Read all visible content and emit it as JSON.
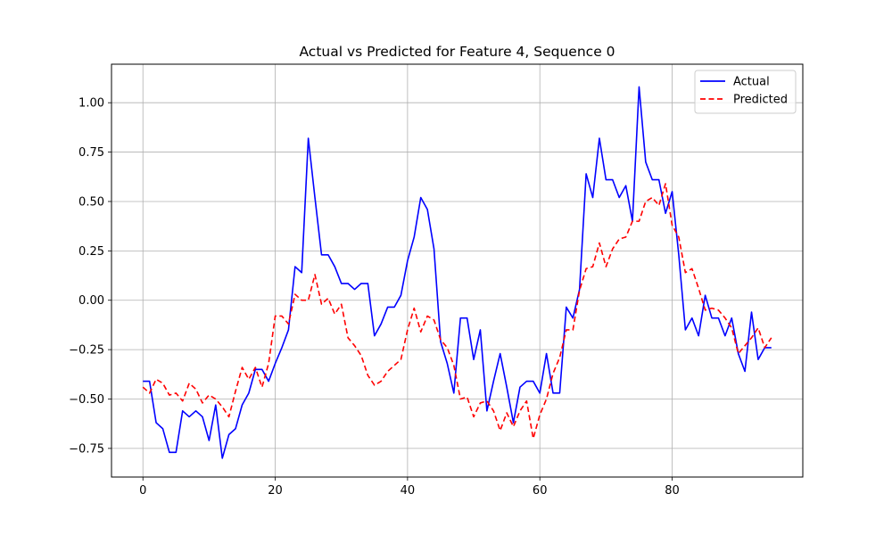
{
  "chart_data": {
    "type": "line",
    "title": "Actual vs Predicted for Feature 4, Sequence 0",
    "xlabel": "",
    "ylabel": "",
    "xlim": [
      -4.75,
      99.75
    ],
    "ylim": [
      -0.895,
      1.195
    ],
    "xticks": [
      0,
      20,
      40,
      60,
      80
    ],
    "yticks": [
      -0.75,
      -0.5,
      -0.25,
      0.0,
      0.25,
      0.5,
      0.75,
      1.0
    ],
    "ytick_labels": [
      "−0.75",
      "−0.50",
      "−0.25",
      "0.00",
      "0.25",
      "0.50",
      "0.75",
      "1.00"
    ],
    "grid": true,
    "legend_position": "top-right",
    "series": [
      {
        "name": "Actual",
        "color": "#0000ff",
        "style": "solid",
        "values": [
          -0.41,
          -0.41,
          -0.62,
          -0.65,
          -0.77,
          -0.77,
          -0.56,
          -0.59,
          -0.56,
          -0.59,
          -0.71,
          -0.53,
          -0.8,
          -0.68,
          -0.65,
          -0.53,
          -0.47,
          -0.35,
          -0.35,
          -0.41,
          -0.32,
          -0.24,
          -0.15,
          0.17,
          0.14,
          0.82,
          0.52,
          0.23,
          0.23,
          0.17,
          0.085,
          0.085,
          0.055,
          0.085,
          0.085,
          -0.18,
          -0.12,
          -0.035,
          -0.035,
          0.025,
          0.2,
          0.32,
          0.52,
          0.46,
          0.26,
          -0.21,
          -0.32,
          -0.47,
          -0.09,
          -0.09,
          -0.3,
          -0.15,
          -0.56,
          -0.41,
          -0.27,
          -0.44,
          -0.62,
          -0.44,
          -0.41,
          -0.41,
          -0.47,
          -0.27,
          -0.47,
          -0.47,
          -0.035,
          -0.09,
          0.055,
          0.64,
          0.52,
          0.82,
          0.61,
          0.61,
          0.52,
          0.58,
          0.4,
          1.08,
          0.7,
          0.61,
          0.61,
          0.44,
          0.55,
          0.23,
          -0.15,
          -0.09,
          -0.18,
          0.025,
          -0.09,
          -0.09,
          -0.18,
          -0.09,
          -0.27,
          -0.36,
          -0.06,
          -0.3,
          -0.24,
          -0.24
        ]
      },
      {
        "name": "Predicted",
        "color": "#ff0000",
        "style": "dashed",
        "values": [
          -0.44,
          -0.47,
          -0.4,
          -0.42,
          -0.48,
          -0.47,
          -0.51,
          -0.42,
          -0.45,
          -0.52,
          -0.48,
          -0.5,
          -0.54,
          -0.59,
          -0.46,
          -0.34,
          -0.4,
          -0.34,
          -0.44,
          -0.32,
          -0.08,
          -0.08,
          -0.12,
          0.03,
          0.0,
          0.0,
          0.13,
          -0.02,
          0.01,
          -0.07,
          -0.02,
          -0.19,
          -0.23,
          -0.28,
          -0.38,
          -0.43,
          -0.41,
          -0.36,
          -0.33,
          -0.3,
          -0.15,
          -0.04,
          -0.16,
          -0.08,
          -0.1,
          -0.2,
          -0.24,
          -0.33,
          -0.5,
          -0.49,
          -0.59,
          -0.52,
          -0.51,
          -0.56,
          -0.66,
          -0.57,
          -0.64,
          -0.56,
          -0.51,
          -0.7,
          -0.58,
          -0.5,
          -0.37,
          -0.29,
          -0.15,
          -0.15,
          0.05,
          0.16,
          0.17,
          0.29,
          0.17,
          0.26,
          0.31,
          0.32,
          0.4,
          0.4,
          0.5,
          0.52,
          0.48,
          0.59,
          0.38,
          0.32,
          0.14,
          0.16,
          0.06,
          -0.05,
          -0.04,
          -0.05,
          -0.09,
          -0.14,
          -0.27,
          -0.23,
          -0.19,
          -0.14,
          -0.24,
          -0.19
        ]
      }
    ]
  }
}
